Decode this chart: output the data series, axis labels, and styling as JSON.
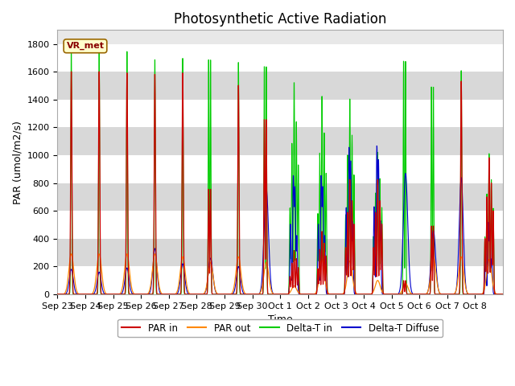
{
  "title": "Photosynthetic Active Radiation",
  "xlabel": "Time",
  "ylabel": "PAR (umol/m2/s)",
  "legend_label": "VR_met",
  "series": {
    "PAR_in": {
      "color": "#cc0000",
      "label": "PAR in"
    },
    "PAR_out": {
      "color": "#ff8800",
      "label": "PAR out"
    },
    "Delta_T_in": {
      "color": "#00cc00",
      "label": "Delta-T in"
    },
    "Delta_T_Diffuse": {
      "color": "#0000cc",
      "label": "Delta-T Diffuse"
    }
  },
  "ylim": [
    0,
    1900
  ],
  "yticks": [
    0,
    200,
    400,
    600,
    800,
    1000,
    1200,
    1400,
    1600,
    1800
  ],
  "plot_bg_color": "#e8e8e8",
  "title_fontsize": 12,
  "axis_fontsize": 9,
  "tick_fontsize": 8,
  "num_days": 16,
  "day_labels": [
    "Sep 23",
    "Sep 24",
    "Sep 25",
    "Sep 26",
    "Sep 27",
    "Sep 28",
    "Sep 29",
    "Sep 30",
    "Oct 1",
    "Oct 2",
    "Oct 3",
    "Oct 4",
    "Oct 5",
    "Oct 6",
    "Oct 7",
    "Oct 8"
  ],
  "par_in_peaks": [
    1620,
    1620,
    1610,
    1600,
    1610,
    770,
    1520,
    1280,
    320,
    460,
    840,
    840,
    100,
    500,
    1550,
    1000
  ],
  "par_out_peaks": [
    290,
    290,
    290,
    290,
    270,
    230,
    270,
    230,
    60,
    250,
    240,
    100,
    80,
    270,
    270,
    250
  ],
  "delta_in_peaks": [
    1800,
    1800,
    1780,
    1720,
    1730,
    1730,
    1700,
    1680,
    1550,
    1450,
    1430,
    1040,
    1720,
    1530,
    1640,
    1030
  ],
  "delta_diff_peaks": [
    180,
    160,
    190,
    330,
    220,
    260,
    200,
    760,
    840,
    840,
    1040,
    1050,
    870,
    460,
    840,
    510
  ],
  "pts_per_day": 144
}
